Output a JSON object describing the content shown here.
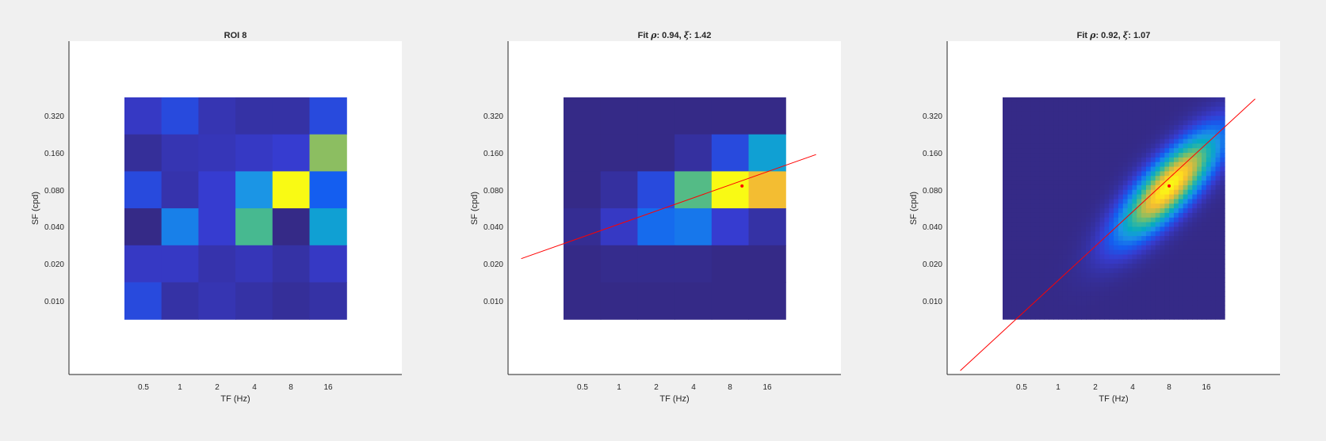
{
  "chart_data": [
    {
      "type": "heatmap",
      "title": "ROI 8",
      "xlabel": "TF (Hz)",
      "ylabel": "SF (cpd)",
      "xticks": [
        "0.5",
        "1",
        "2",
        "4",
        "8",
        "16"
      ],
      "yticks": [
        "0.320",
        "0.160",
        "0.080",
        "0.040",
        "0.020",
        "0.010"
      ],
      "scale": "log2",
      "grid": false,
      "colormap": "parula",
      "z": [
        [
          0.1,
          0.16,
          0.07,
          0.05,
          0.05,
          0.16
        ],
        [
          0.03,
          0.07,
          0.08,
          0.1,
          0.12,
          0.68
        ],
        [
          0.16,
          0.06,
          0.12,
          0.35,
          1.0,
          0.22
        ],
        [
          0.0,
          0.3,
          0.12,
          0.58,
          0.0,
          0.4
        ],
        [
          0.1,
          0.1,
          0.06,
          0.08,
          0.05,
          0.1
        ],
        [
          0.16,
          0.05,
          0.07,
          0.05,
          0.03,
          0.05
        ]
      ]
    },
    {
      "type": "heatmap",
      "title": "Fit ρ: 0.94, ξ: 1.42",
      "title_parts": {
        "prefix": "Fit ",
        "rho_symbol": "ρ",
        "rho": ": 0.94, ",
        "xi_symbol": "ξ",
        "xi": ": 1.42"
      },
      "xlabel": "TF (Hz)",
      "ylabel": "SF (cpd)",
      "xticks": [
        "0.5",
        "1",
        "2",
        "4",
        "8",
        "16"
      ],
      "yticks": [
        "0.320",
        "0.160",
        "0.080",
        "0.040",
        "0.020",
        "0.010"
      ],
      "scale": "log2",
      "grid": false,
      "colormap": "parula",
      "z": [
        [
          0.0,
          0.0,
          0.0,
          0.0,
          0.0,
          0.0
        ],
        [
          0.0,
          0.0,
          0.0,
          0.04,
          0.16,
          0.4
        ],
        [
          0.0,
          0.04,
          0.16,
          0.6,
          1.0,
          0.85
        ],
        [
          0.02,
          0.1,
          0.25,
          0.28,
          0.12,
          0.05
        ],
        [
          0.0,
          0.01,
          0.01,
          0.01,
          0.0,
          0.0
        ],
        [
          0.0,
          0.0,
          0.0,
          0.0,
          0.0,
          0.0
        ]
      ],
      "fit_line": {
        "x": [
          0.16,
          40
        ],
        "y": [
          0.022,
          0.155
        ]
      },
      "peak": {
        "x": 10,
        "y": 0.086
      }
    },
    {
      "type": "heatmap",
      "title": "Fit ρ: 0.92, ξ: 1.07",
      "title_parts": {
        "prefix": "Fit ",
        "rho_symbol": "ρ",
        "rho": ": 0.92, ",
        "xi_symbol": "ξ",
        "xi": ": 1.07"
      },
      "xlabel": "TF (Hz)",
      "ylabel": "SF (cpd)",
      "xticks": [
        "0.5",
        "1",
        "2",
        "4",
        "8",
        "16"
      ],
      "yticks": [
        "0.320",
        "0.160",
        "0.080",
        "0.040",
        "0.020",
        "0.010"
      ],
      "scale": "log2",
      "grid": false,
      "colormap": "parula",
      "gaussian": {
        "peak_x": 8,
        "peak_y": 0.086,
        "sigma_major": 1.25,
        "sigma_minor": 0.42,
        "slope": 1.07
      },
      "fit_line": {
        "x": [
          0.16,
          40
        ],
        "y": [
          0.0027,
          0.44
        ]
      },
      "peak": {
        "x": 8,
        "y": 0.086
      }
    }
  ]
}
